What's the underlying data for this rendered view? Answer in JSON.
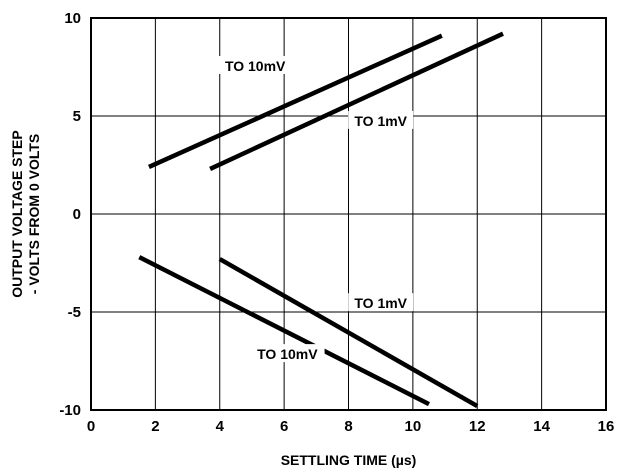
{
  "chart_data": {
    "type": "line",
    "title": "",
    "xlabel": "SETTLING TIME (µs)",
    "ylabel_lines": [
      "OUTPUT VOLTAGE STEP",
      "- VOLTS FROM 0 VOLTS"
    ],
    "xlim": [
      0,
      16
    ],
    "ylim": [
      -10,
      10
    ],
    "x_ticks": [
      0,
      2,
      4,
      6,
      8,
      10,
      12,
      14,
      16
    ],
    "y_ticks": [
      -10,
      -5,
      0,
      5,
      10
    ],
    "grid": true,
    "series": [
      {
        "x": [
          1.8,
          10.9
        ],
        "y": [
          2.4,
          9.1
        ]
      },
      {
        "x": [
          3.7,
          12.8
        ],
        "y": [
          2.3,
          9.2
        ]
      },
      {
        "x": [
          1.5,
          10.5
        ],
        "y": [
          -2.2,
          -9.7
        ]
      },
      {
        "x": [
          4.0,
          12.0
        ],
        "y": [
          -2.3,
          -9.8
        ]
      }
    ],
    "annotations": [
      {
        "text": "TO 10mV",
        "x": 5.1,
        "y": 7.5
      },
      {
        "text": "TO 1mV",
        "x": 9.0,
        "y": 4.7
      },
      {
        "text": "TO 1mV",
        "x": 9.0,
        "y": -4.6
      },
      {
        "text": "TO 10mV",
        "x": 6.1,
        "y": -7.2
      }
    ]
  }
}
